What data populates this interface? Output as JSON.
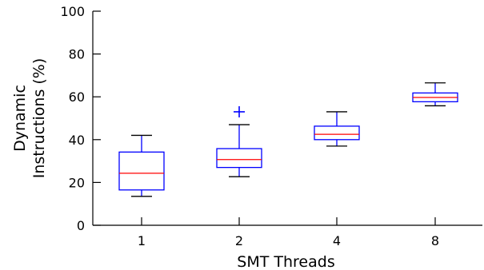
{
  "chart_data": {
    "type": "box",
    "xlabel": "SMT Threads",
    "ylabel_lines": [
      "Dynamic",
      "Instructions (%)"
    ],
    "ylim": [
      0,
      100
    ],
    "yticks": [
      0,
      20,
      40,
      60,
      80,
      100
    ],
    "categories": [
      "1",
      "2",
      "4",
      "8"
    ],
    "boxes": [
      {
        "category": "1",
        "whisker_low": 13.5,
        "q1": 16.5,
        "median": 24.3,
        "q3": 34.2,
        "whisker_high": 42,
        "outliers": []
      },
      {
        "category": "2",
        "whisker_low": 22.7,
        "q1": 27,
        "median": 30.7,
        "q3": 35.8,
        "whisker_high": 47,
        "outliers": [
          53
        ]
      },
      {
        "category": "4",
        "whisker_low": 37,
        "q1": 40,
        "median": 42.5,
        "q3": 46.3,
        "whisker_high": 53,
        "outliers": []
      },
      {
        "category": "8",
        "whisker_low": 55.8,
        "q1": 57.7,
        "median": 59.7,
        "q3": 61.8,
        "whisker_high": 66.5,
        "outliers": []
      }
    ],
    "colors": {
      "box": "#0000ff",
      "median": "#ff0000",
      "axis": "#000000"
    },
    "grid": false,
    "legend": "none"
  }
}
